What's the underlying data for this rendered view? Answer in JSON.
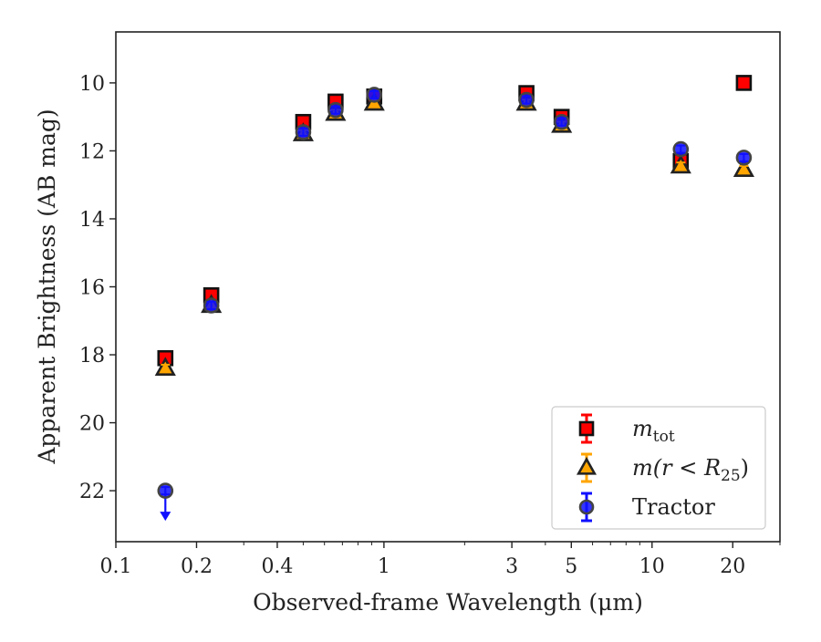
{
  "chart_data": {
    "type": "scatter",
    "xlabel": "Observed-frame Wavelength (μm)",
    "ylabel": "Apparent Brightness (AB mag)",
    "xscale": "log",
    "xlim": [
      0.1,
      30
    ],
    "ylim": [
      23.5,
      8.5
    ],
    "y_inverted": true,
    "xticks": [
      {
        "value": 0.1,
        "label": "0.1"
      },
      {
        "value": 0.2,
        "label": "0.2"
      },
      {
        "value": 0.4,
        "label": "0.4"
      },
      {
        "value": 1,
        "label": "1"
      },
      {
        "value": 3,
        "label": "3"
      },
      {
        "value": 5,
        "label": "5"
      },
      {
        "value": 10,
        "label": "10"
      },
      {
        "value": 20,
        "label": "20"
      }
    ],
    "yticks": [
      {
        "value": 10,
        "label": "10"
      },
      {
        "value": 12,
        "label": "12"
      },
      {
        "value": 14,
        "label": "14"
      },
      {
        "value": 16,
        "label": "16"
      },
      {
        "value": 18,
        "label": "18"
      },
      {
        "value": 20,
        "label": "20"
      },
      {
        "value": 22,
        "label": "22"
      }
    ],
    "legend_position": "lower-right",
    "series": [
      {
        "name_main": "m",
        "name_sub": "tot",
        "marker": "square",
        "color": "#ff0000",
        "edge_color": "#111111",
        "points": [
          {
            "x": 0.153,
            "y": 18.1
          },
          {
            "x": 0.227,
            "y": 16.25
          },
          {
            "x": 0.5,
            "y": 11.15
          },
          {
            "x": 0.66,
            "y": 10.55
          },
          {
            "x": 0.92,
            "y": 10.4
          },
          {
            "x": 3.4,
            "y": 10.3
          },
          {
            "x": 4.6,
            "y": 11.0
          },
          {
            "x": 12.8,
            "y": 12.3
          },
          {
            "x": 22.0,
            "y": 10.0
          }
        ]
      },
      {
        "name_main": "m(r < R",
        "name_sub": "25",
        "name_tail": ")",
        "marker": "triangle",
        "color": "#ffa500",
        "edge_color": "#222222",
        "points": [
          {
            "x": 0.153,
            "y": 18.4
          },
          {
            "x": 0.227,
            "y": 16.55
          },
          {
            "x": 0.5,
            "y": 11.5
          },
          {
            "x": 0.66,
            "y": 10.9
          },
          {
            "x": 0.92,
            "y": 10.6
          },
          {
            "x": 3.4,
            "y": 10.6
          },
          {
            "x": 4.6,
            "y": 11.25
          },
          {
            "x": 12.8,
            "y": 12.45
          },
          {
            "x": 22.0,
            "y": 12.55
          }
        ]
      },
      {
        "name": "Tractor",
        "marker": "circle",
        "color": "#1010ff",
        "edge_color": "#444444",
        "points": [
          {
            "x": 0.153,
            "y": 22.0,
            "upper_limit": true
          },
          {
            "x": 0.227,
            "y": 16.55
          },
          {
            "x": 0.5,
            "y": 11.45
          },
          {
            "x": 0.66,
            "y": 10.8
          },
          {
            "x": 0.92,
            "y": 10.35
          },
          {
            "x": 3.4,
            "y": 10.5
          },
          {
            "x": 4.6,
            "y": 11.15
          },
          {
            "x": 12.8,
            "y": 11.95
          },
          {
            "x": 22.0,
            "y": 12.2
          }
        ]
      }
    ]
  }
}
